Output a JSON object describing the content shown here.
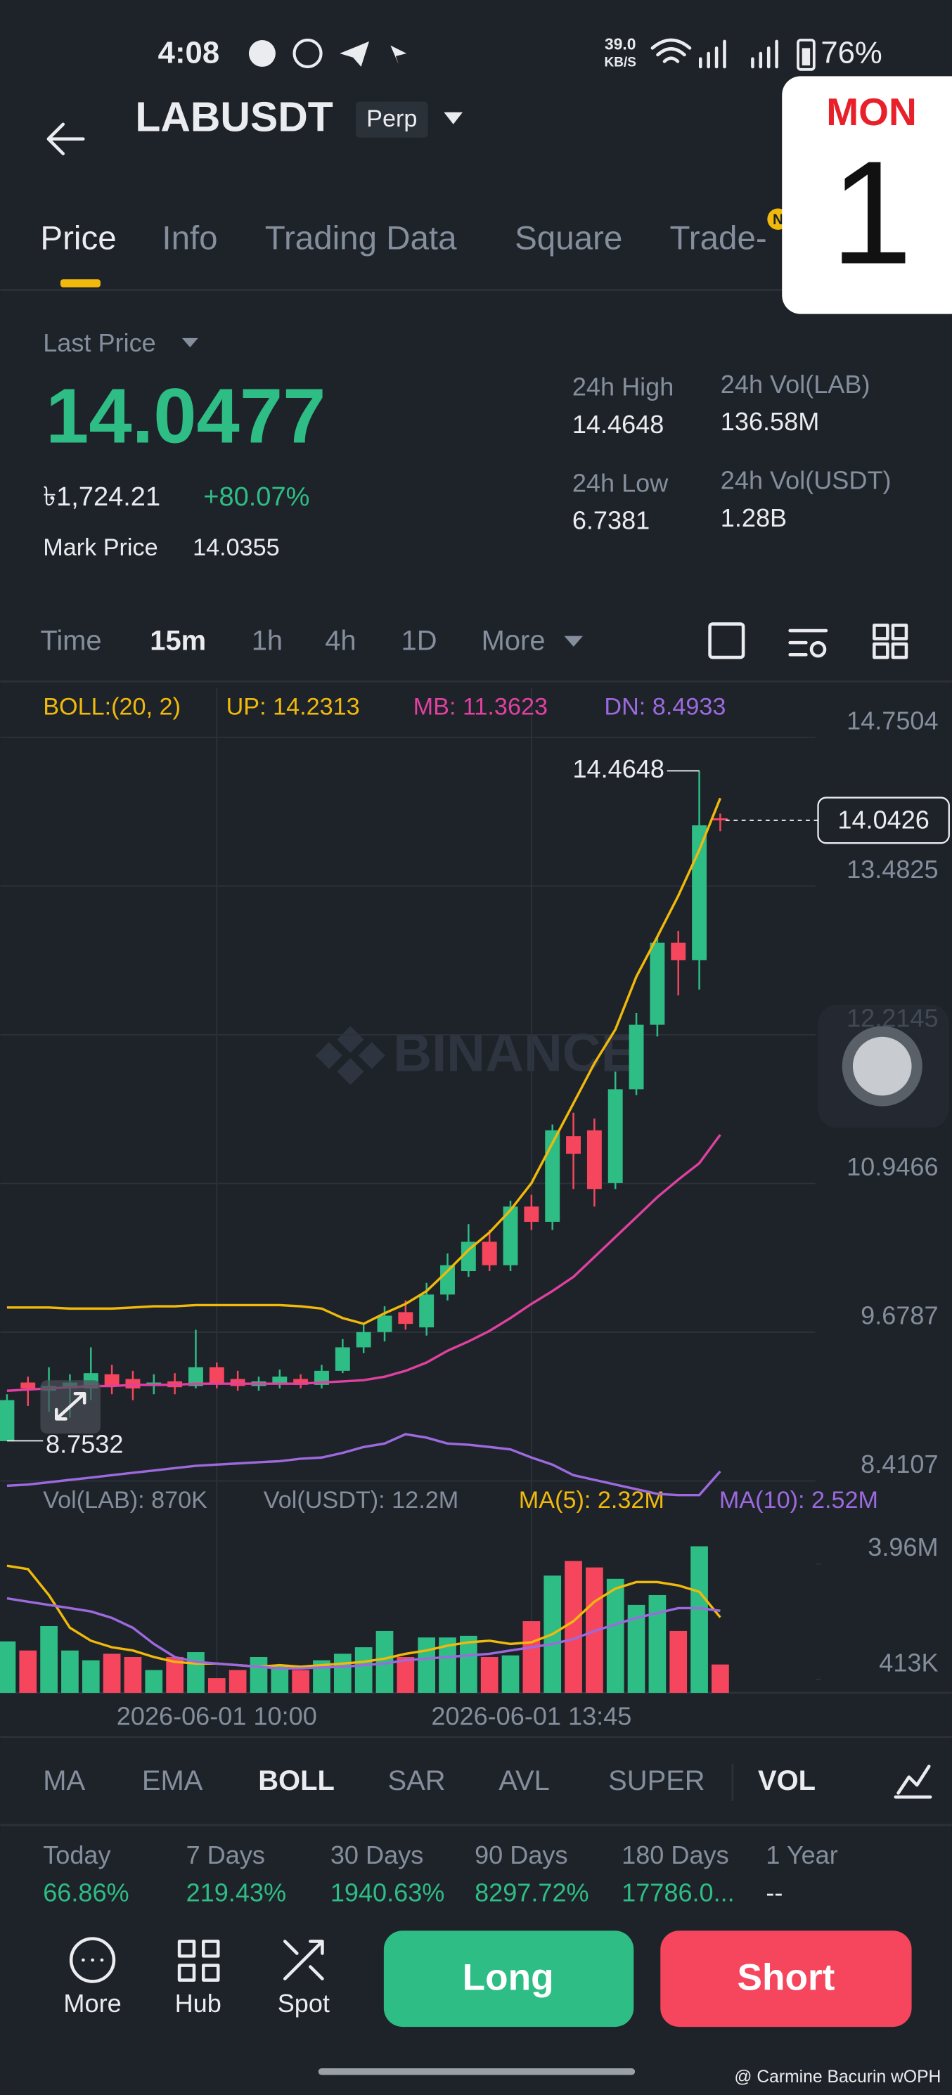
{
  "status_bar": {
    "time": "4:08",
    "speed": "39.0",
    "speed_unit": "KB/S",
    "battery": "76%"
  },
  "header": {
    "symbol": "LABUSDT",
    "badge": "Perp"
  },
  "calendar_widget": {
    "day": "MON",
    "date": "1"
  },
  "tabs": [
    "Price",
    "Info",
    "Trading Data",
    "Square",
    "Trade-"
  ],
  "tab_badge": "N",
  "price_info": {
    "last_price_label": "Last Price",
    "last_price": "14.0477",
    "fiat_price": "৳1,724.21",
    "change": "+80.07%",
    "mark_price_label": "Mark Price",
    "mark_price": "14.0355",
    "stats": [
      {
        "label": "24h High",
        "value": "14.4648"
      },
      {
        "label": "24h Vol(LAB)",
        "value": "136.58M"
      },
      {
        "label": "24h Low",
        "value": "6.7381"
      },
      {
        "label": "24h Vol(USDT)",
        "value": "1.28B"
      }
    ]
  },
  "timeframes": [
    "Time",
    "15m",
    "1h",
    "4h",
    "1D",
    "More"
  ],
  "brand_watermark": "BINANCE",
  "chart_data": {
    "type": "candlestick",
    "indicator_title": "BOLL:(20, 2)",
    "categories": [
      null,
      null,
      null,
      null,
      null,
      null,
      null,
      null,
      null,
      null,
      "2026-06-01 10:00",
      null,
      null,
      null,
      null,
      null,
      null,
      null,
      null,
      null,
      null,
      null,
      null,
      null,
      null,
      "2026-06-01 13:45",
      null,
      null,
      null,
      null,
      null,
      null,
      null,
      null,
      null
    ],
    "up_color": "#2ebd85",
    "down_color": "#f6465d",
    "candles": {
      "open": [
        8.75,
        9.25,
        9.18,
        9.2,
        9.2,
        9.32,
        9.28,
        9.22,
        9.26,
        9.22,
        9.38,
        9.28,
        9.22,
        9.24,
        9.28,
        9.23,
        9.35,
        9.55,
        9.68,
        9.85,
        9.72,
        10.0,
        10.2,
        10.45,
        10.25,
        10.75,
        10.62,
        11.35,
        11.4,
        10.95,
        11.75,
        12.3,
        13.0,
        12.85,
        14.06
      ],
      "high": [
        9.15,
        9.3,
        9.38,
        9.32,
        9.55,
        9.4,
        9.35,
        9.32,
        9.33,
        9.7,
        9.42,
        9.35,
        9.3,
        9.36,
        9.32,
        9.4,
        9.62,
        9.75,
        9.9,
        9.95,
        10.1,
        10.35,
        10.6,
        10.55,
        10.8,
        10.85,
        11.45,
        11.55,
        11.5,
        11.9,
        12.4,
        13.05,
        13.1,
        14.4648,
        14.1
      ],
      "low": [
        8.7532,
        9.05,
        9.0,
        8.95,
        9.1,
        9.15,
        9.1,
        9.15,
        9.15,
        9.2,
        9.2,
        9.18,
        9.18,
        9.2,
        9.2,
        9.2,
        9.33,
        9.5,
        9.6,
        9.7,
        9.65,
        9.95,
        10.15,
        10.2,
        10.2,
        10.55,
        10.55,
        10.9,
        10.75,
        10.9,
        11.7,
        12.2,
        12.55,
        12.6,
        13.95
      ],
      "close": [
        9.1,
        9.2,
        9.22,
        9.25,
        9.33,
        9.22,
        9.2,
        9.25,
        9.21,
        9.38,
        9.25,
        9.22,
        9.26,
        9.3,
        9.23,
        9.35,
        9.55,
        9.68,
        9.82,
        9.75,
        10.0,
        10.25,
        10.45,
        10.25,
        10.75,
        10.62,
        11.4,
        11.2,
        10.9,
        11.75,
        12.3,
        13.0,
        12.85,
        14.0,
        14.0426
      ]
    },
    "overlays": [
      {
        "label": "UP: 14.2313",
        "color": "#f0b90b",
        "values": [
          9.89,
          9.89,
          9.89,
          9.88,
          9.88,
          9.88,
          9.89,
          9.9,
          9.9,
          9.91,
          9.91,
          9.91,
          9.91,
          9.91,
          9.9,
          9.88,
          9.8,
          9.75,
          9.84,
          9.92,
          10.03,
          10.2,
          10.38,
          10.53,
          10.72,
          10.95,
          11.29,
          11.63,
          11.97,
          12.26,
          12.71,
          13.05,
          13.4,
          13.79,
          14.2313
        ]
      },
      {
        "label": "MB: 11.3623",
        "color": "#e040a0",
        "values": [
          9.18,
          9.19,
          9.2,
          9.21,
          9.22,
          9.22,
          9.23,
          9.23,
          9.23,
          9.24,
          9.24,
          9.24,
          9.24,
          9.24,
          9.24,
          9.25,
          9.26,
          9.27,
          9.3,
          9.35,
          9.42,
          9.52,
          9.6,
          9.69,
          9.8,
          9.92,
          10.03,
          10.15,
          10.32,
          10.49,
          10.66,
          10.83,
          10.98,
          11.12,
          11.3623
        ]
      },
      {
        "label": "DN: 8.4933",
        "color": "#9c6ade",
        "values": [
          8.37,
          8.38,
          8.4,
          8.42,
          8.44,
          8.46,
          8.48,
          8.5,
          8.52,
          8.54,
          8.55,
          8.56,
          8.57,
          8.58,
          8.6,
          8.61,
          8.65,
          8.7,
          8.73,
          8.81,
          8.78,
          8.73,
          8.72,
          8.7,
          8.68,
          8.61,
          8.55,
          8.46,
          8.42,
          8.38,
          8.34,
          8.3,
          8.29,
          8.29,
          8.4933
        ]
      }
    ],
    "ylim": [
      8.37,
      15.17
    ],
    "yticks": [
      14.7504,
      13.4825,
      12.2145,
      10.9466,
      9.6787,
      8.4107
    ],
    "grid": true,
    "high_marker": 14.4648,
    "low_marker": 8.7532,
    "last_price_marker": 14.0426,
    "volume": {
      "legend": [
        "Vol(LAB): 870K",
        "Vol(USDT): 12.2M"
      ],
      "values": [
        1580000,
        1300000,
        2050000,
        1300000,
        1000000,
        1200000,
        1100000,
        700000,
        1100000,
        1250000,
        450000,
        700000,
        1100000,
        850000,
        700000,
        1000000,
        1200000,
        1400000,
        1900000,
        1100000,
        1700000,
        1700000,
        1750000,
        1100000,
        1150000,
        2200000,
        3600000,
        4050000,
        3850000,
        3500000,
        2700000,
        3000000,
        1900000,
        4500000,
        870000
      ],
      "ylim": [
        0,
        4800000
      ],
      "yticks": [
        {
          "value": 3960000,
          "label": "3.96M"
        },
        {
          "value": 413000,
          "label": "413K"
        }
      ],
      "overlays": [
        {
          "label": "MA(5): 2.32M",
          "color": "#f0b90b",
          "values": [
            3900000,
            3800000,
            3000000,
            2000000,
            1600000,
            1400000,
            1300000,
            1100000,
            950000,
            900000,
            900000,
            850000,
            800000,
            850000,
            800000,
            850000,
            900000,
            950000,
            1050000,
            1200000,
            1300000,
            1450000,
            1550000,
            1600000,
            1500000,
            1550000,
            1800000,
            2200000,
            2800000,
            3200000,
            3400000,
            3400000,
            3300000,
            3100000,
            2320000
          ]
        },
        {
          "label": "MA(10): 2.52M",
          "color": "#9c6ade",
          "values": [
            2900000,
            2800000,
            2700000,
            2600000,
            2500000,
            2300000,
            2000000,
            1500000,
            1100000,
            950000,
            900000,
            850000,
            800000,
            750000,
            750000,
            780000,
            800000,
            850000,
            900000,
            1000000,
            1050000,
            1100000,
            1150000,
            1200000,
            1300000,
            1400000,
            1500000,
            1650000,
            1900000,
            2100000,
            2300000,
            2450000,
            2600000,
            2600000,
            2520000
          ]
        }
      ]
    }
  },
  "indicator_tabs": [
    "MA",
    "EMA",
    "BOLL",
    "SAR",
    "AVL",
    "SUPER",
    "VOL"
  ],
  "returns": [
    {
      "label": "Today",
      "value": "66.86%"
    },
    {
      "label": "7 Days",
      "value": "219.43%"
    },
    {
      "label": "30 Days",
      "value": "1940.63%"
    },
    {
      "label": "90 Days",
      "value": "8297.72%"
    },
    {
      "label": "180 Days",
      "value": "17786.0..."
    },
    {
      "label": "1 Year",
      "value": "--"
    }
  ],
  "bottom_bar": {
    "tools": [
      "More",
      "Hub",
      "Spot"
    ],
    "long": "Long",
    "short": "Short"
  },
  "watermark": "@ Carmine Bacurin wOPH"
}
